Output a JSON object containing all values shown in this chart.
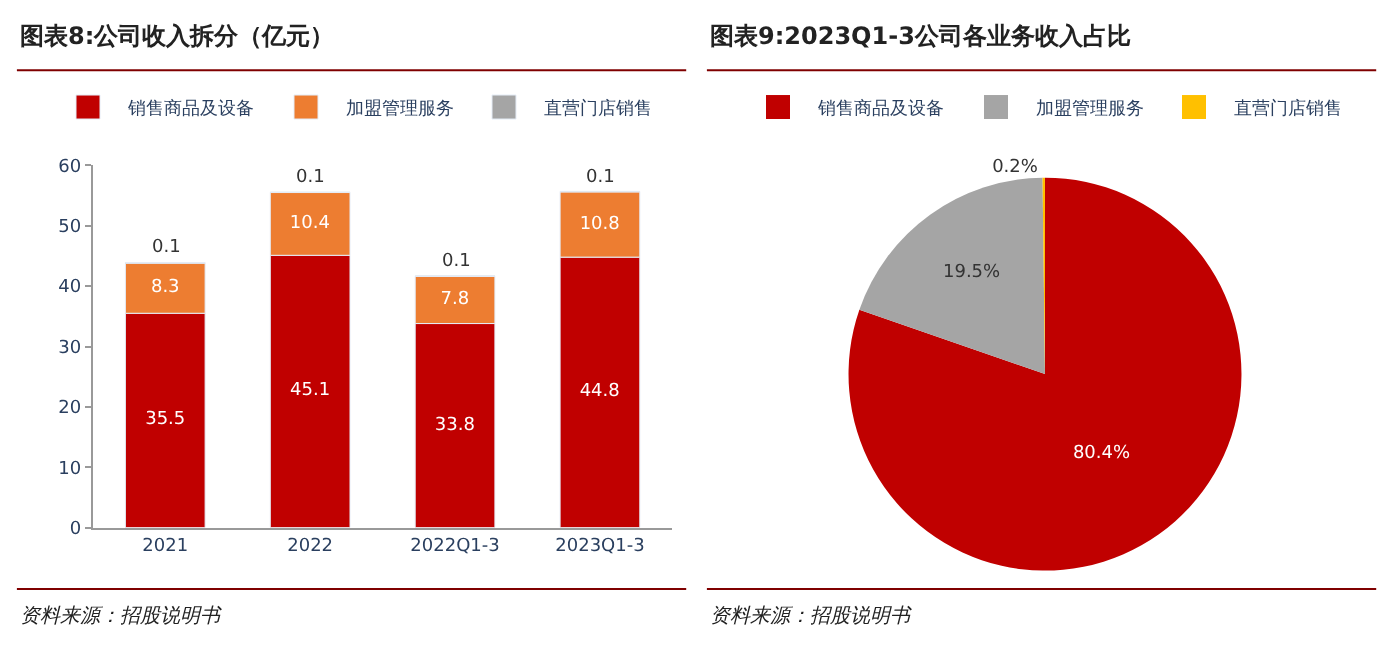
{
  "chart_data": [
    {
      "type": "bar",
      "title": "图表8:公司收入拆分（亿元）",
      "categories": [
        "2021",
        "2022",
        "2022Q1-3",
        "2023Q1-3"
      ],
      "stacked": true,
      "ylim": [
        0,
        60
      ],
      "yticks": [
        0,
        10,
        20,
        30,
        40,
        50,
        60
      ],
      "legend": "top",
      "data_labels": true,
      "series": [
        {
          "name": "销售商品及设备",
          "color": "#c00000",
          "values": [
            35.5,
            45.1,
            33.8,
            44.8
          ]
        },
        {
          "name": "加盟管理服务",
          "color": "#ed7d31",
          "values": [
            8.3,
            10.4,
            7.8,
            10.8
          ]
        },
        {
          "name": "直营门店销售",
          "color": "#a5a5a5",
          "values": [
            0.1,
            0.1,
            0.1,
            0.1
          ]
        }
      ],
      "annotations": [
        "资料来源：招股说明书"
      ]
    },
    {
      "type": "pie",
      "title": "图表9:2023Q1-3公司各业务收入占比",
      "categories": [
        "销售商品及设备",
        "加盟管理服务",
        "直营门店销售"
      ],
      "values": [
        80.4,
        19.5,
        0.2
      ],
      "value_labels": [
        "80.4%",
        "19.5%",
        "0.2%"
      ],
      "colors": [
        "#c00000",
        "#a5a5a5",
        "#ffc000"
      ],
      "legend": "top",
      "annotations": [
        "资料来源：招股说明书"
      ]
    }
  ]
}
